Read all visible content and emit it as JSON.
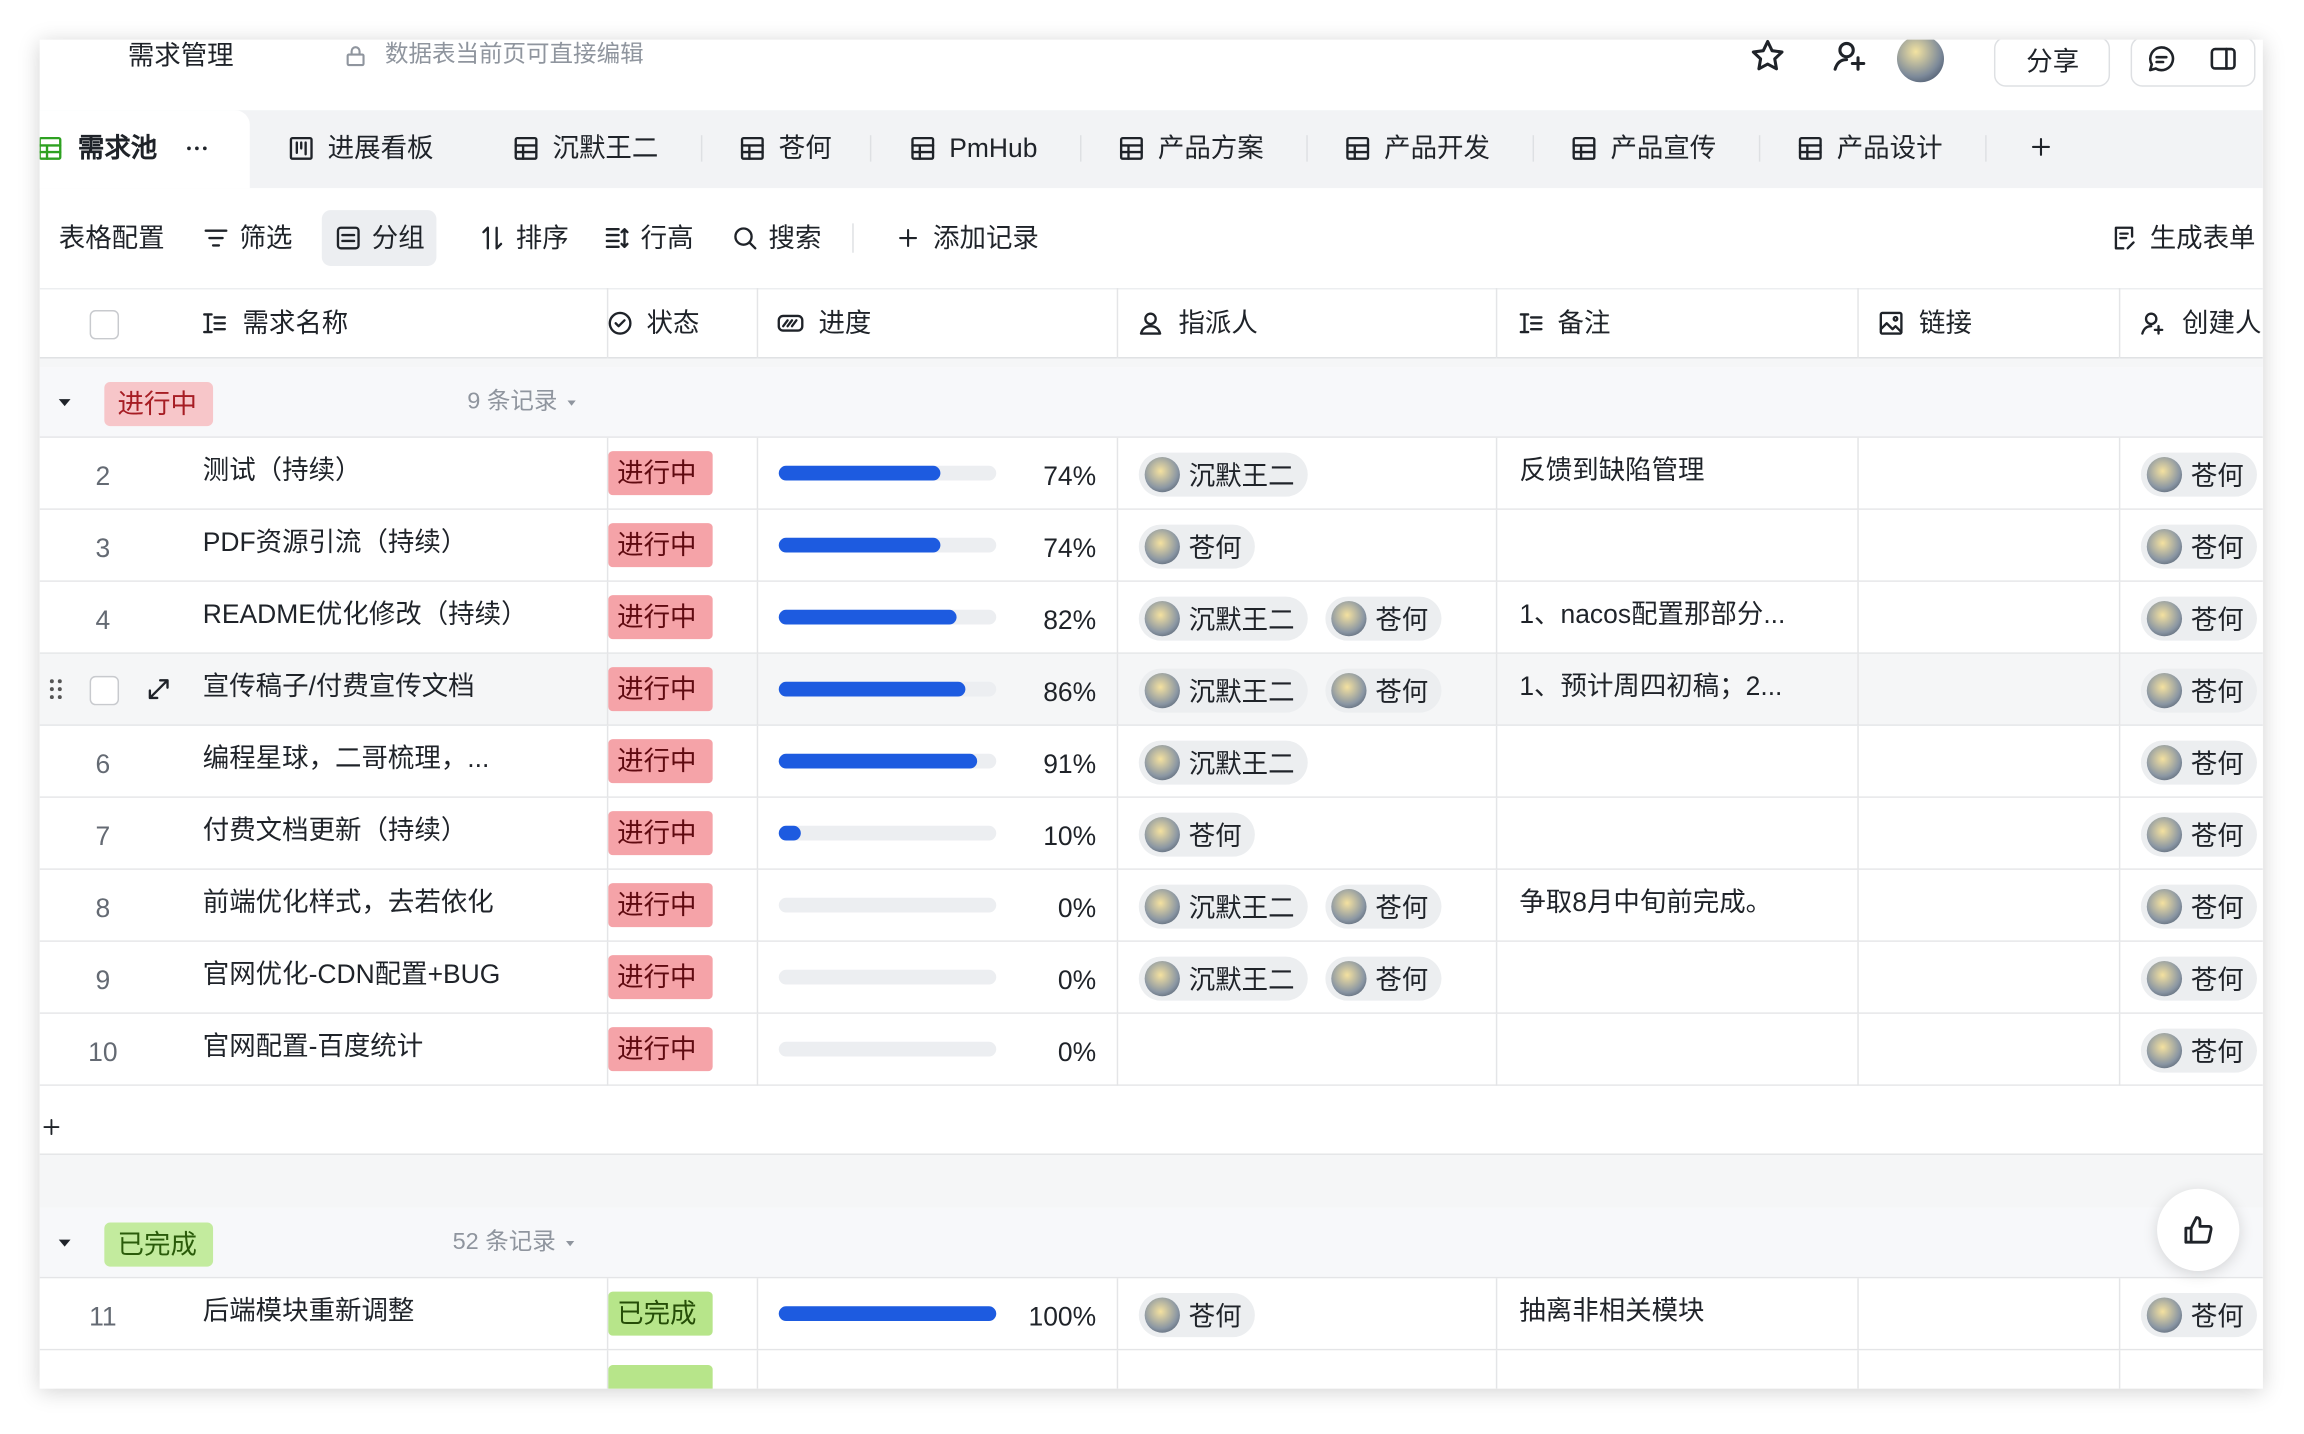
{
  "header": {
    "title": "需求管理",
    "lock_note": "数据表当前页可直接编辑",
    "share": "分享"
  },
  "tabs": [
    "需求池",
    "进展看板",
    "沉默王二",
    "苍何",
    "PmHub",
    "产品方案",
    "产品开发",
    "产品宣传",
    "产品设计"
  ],
  "toolbar": {
    "items": [
      "表格配置",
      "筛选",
      "分组",
      "排序",
      "行高",
      "搜索"
    ],
    "add": "添加记录",
    "form": "生成表单"
  },
  "table": {
    "columns": [
      "需求名称",
      "状态",
      "进度",
      "指派人",
      "备注",
      "链接",
      "创建人"
    ],
    "groups": [
      {
        "label": "进行中",
        "count": "9 条记录",
        "rows": [
          {
            "id": 2,
            "name": "测试（持续）",
            "status": "进行中",
            "progress": 74,
            "progress_label": "74%",
            "assignees": [
              "沉默王二"
            ],
            "note": "反馈到缺陷管理",
            "creator": "苍何"
          },
          {
            "id": 3,
            "name": "PDF资源引流（持续）",
            "status": "进行中",
            "progress": 74,
            "progress_label": "74%",
            "assignees": [
              "苍何"
            ],
            "creator": "苍何"
          },
          {
            "id": 4,
            "name": "README优化修改（持续）",
            "status": "进行中",
            "progress": 82,
            "progress_label": "82%",
            "assignees": [
              "沉默王二",
              "苍何"
            ],
            "note": "1、nacos配置那部分...",
            "creator": "苍何"
          },
          {
            "id": null,
            "name": "宣传稿子/付费宣传文档",
            "status": "进行中",
            "progress": 86,
            "progress_label": "86%",
            "assignees": [
              "沉默王二",
              "苍何"
            ],
            "note": "1、预计周四初稿；2...",
            "creator": "苍何"
          },
          {
            "id": 6,
            "name": "编程星球，二哥梳理，...",
            "status": "进行中",
            "progress": 91,
            "progress_label": "91%",
            "assignees": [
              "沉默王二"
            ],
            "creator": "苍何"
          },
          {
            "id": 7,
            "name": "付费文档更新（持续）",
            "status": "进行中",
            "progress": 10,
            "progress_label": "10%",
            "assignees": [
              "苍何"
            ],
            "creator": "苍何"
          },
          {
            "id": 8,
            "name": "前端优化样式，去若依化",
            "status": "进行中",
            "progress": 0,
            "progress_label": "0%",
            "assignees": [
              "沉默王二",
              "苍何"
            ],
            "note": "争取8月中旬前完成。",
            "creator": "苍何"
          },
          {
            "id": 9,
            "name": "官网优化-CDN配置+BUG",
            "status": "进行中",
            "progress": 0,
            "progress_label": "0%",
            "assignees": [
              "沉默王二",
              "苍何"
            ],
            "creator": "苍何"
          },
          {
            "id": 10,
            "name": "官网配置-百度统计",
            "status": "进行中",
            "progress": 0,
            "progress_label": "0%",
            "assignees": [],
            "creator": "苍何"
          }
        ]
      },
      {
        "label": "已完成",
        "count": "52 条记录",
        "rows": [
          {
            "id": 11,
            "name": "后端模块重新调整",
            "status": "已完成",
            "progress": 100,
            "progress_label": "100%",
            "assignees": [
              "苍何"
            ],
            "note": "抽离非相关模块",
            "creator": "苍何"
          }
        ]
      }
    ]
  }
}
